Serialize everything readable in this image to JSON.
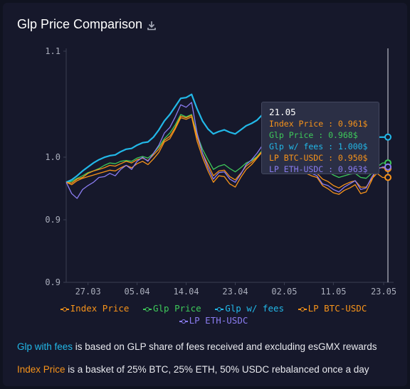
{
  "title": "Glp Price Comparison",
  "icons": {
    "download": "download-icon"
  },
  "colors": {
    "background": "#16182b",
    "index_price": "#f7931a",
    "glp_price": "#3ec95a",
    "glp_with_fees": "#22b8e8",
    "lp_btc_usdc": "#f7931a",
    "lp_eth_usdc": "#8a7cf0"
  },
  "chart_data": {
    "type": "line",
    "title": "Glp Price Comparison",
    "xlabel": "",
    "ylabel": "",
    "x": [
      "23.03",
      "24.03",
      "25.03",
      "26.03",
      "27.03",
      "28.03",
      "29.03",
      "30.03",
      "31.03",
      "01.04",
      "02.04",
      "03.04",
      "04.04",
      "05.04",
      "06.04",
      "07.04",
      "08.04",
      "09.04",
      "10.04",
      "11.04",
      "12.04",
      "13.04",
      "14.04",
      "15.04",
      "16.04",
      "17.04",
      "18.04",
      "19.04",
      "20.04",
      "21.04",
      "22.04",
      "23.04",
      "24.04",
      "25.04",
      "26.04",
      "27.04",
      "28.04",
      "29.04",
      "30.04",
      "01.05",
      "02.05",
      "03.05",
      "04.05",
      "05.05",
      "06.05",
      "07.05",
      "08.05",
      "09.05",
      "10.05",
      "11.05",
      "12.05",
      "13.05",
      "14.05",
      "15.05",
      "16.05",
      "17.05",
      "18.05",
      "19.05",
      "20.05",
      "21.05"
    ],
    "x_ticks": [
      "27.03",
      "05.04",
      "14.04",
      "23.04",
      "02.05",
      "11.05",
      "23.05"
    ],
    "y_ticks": [
      "1.1",
      "1.0",
      "0.9",
      "0.9"
    ],
    "ylim": [
      0.82,
      1.11
    ],
    "series": [
      {
        "name": "Index Price",
        "values": [
          0.944,
          0.941,
          0.946,
          0.949,
          0.951,
          0.953,
          0.955,
          0.957,
          0.959,
          0.958,
          0.962,
          0.965,
          0.962,
          0.967,
          0.97,
          0.966,
          0.973,
          0.981,
          0.994,
          0.998,
          1.01,
          1.024,
          1.022,
          1.025,
          0.995,
          0.975,
          0.958,
          0.944,
          0.952,
          0.951,
          0.942,
          0.938,
          0.95,
          0.96,
          0.966,
          0.974,
          0.982,
          0.975,
          0.971,
          0.968,
          0.976,
          0.974,
          0.976,
          0.962,
          0.955,
          0.952,
          0.95,
          0.94,
          0.936,
          0.931,
          0.929,
          0.934,
          0.937,
          0.941,
          0.93,
          0.932,
          0.946,
          0.962,
          0.962,
          0.961
        ]
      },
      {
        "name": "Glp Price",
        "values": [
          0.944,
          0.945,
          0.949,
          0.952,
          0.956,
          0.958,
          0.961,
          0.965,
          0.968,
          0.967,
          0.97,
          0.971,
          0.97,
          0.974,
          0.976,
          0.974,
          0.98,
          0.988,
          0.998,
          1.005,
          1.015,
          1.028,
          1.025,
          1.028,
          1.003,
          0.985,
          0.972,
          0.96,
          0.964,
          0.966,
          0.961,
          0.957,
          0.962,
          0.968,
          0.971,
          0.976,
          0.984,
          0.98,
          0.977,
          0.975,
          0.979,
          0.978,
          0.979,
          0.971,
          0.966,
          0.963,
          0.962,
          0.958,
          0.957,
          0.953,
          0.95,
          0.952,
          0.954,
          0.955,
          0.95,
          0.949,
          0.955,
          0.963,
          0.968,
          0.968
        ]
      },
      {
        "name": "Glp w/ fees",
        "values": [
          0.944,
          0.947,
          0.952,
          0.958,
          0.963,
          0.968,
          0.972,
          0.975,
          0.977,
          0.978,
          0.982,
          0.985,
          0.986,
          0.99,
          0.993,
          0.994,
          1.0,
          1.009,
          1.02,
          1.028,
          1.038,
          1.048,
          1.049,
          1.053,
          1.035,
          1.02,
          1.01,
          1.004,
          1.007,
          1.009,
          1.006,
          1.004,
          1.009,
          1.014,
          1.017,
          1.021,
          1.028,
          1.027,
          1.025,
          1.023,
          1.027,
          1.028,
          1.03,
          1.025,
          1.021,
          1.019,
          1.018,
          1.015,
          1.014,
          1.011,
          1.009,
          1.01,
          1.012,
          1.013,
          1.009,
          1.008,
          1.01,
          1.0,
          1.0,
          1.0
        ]
      },
      {
        "name": "LP BTC-USDC",
        "values": [
          0.944,
          0.943,
          0.948,
          0.95,
          0.955,
          0.958,
          0.96,
          0.962,
          0.965,
          0.964,
          0.967,
          0.97,
          0.968,
          0.972,
          0.974,
          0.971,
          0.978,
          0.985,
          0.996,
          1.001,
          1.012,
          1.026,
          1.024,
          1.027,
          1.0,
          0.98,
          0.966,
          0.952,
          0.958,
          0.959,
          0.951,
          0.947,
          0.955,
          0.964,
          0.969,
          0.975,
          0.983,
          0.978,
          0.974,
          0.972,
          0.978,
          0.976,
          0.978,
          0.966,
          0.96,
          0.957,
          0.955,
          0.948,
          0.945,
          0.94,
          0.937,
          0.941,
          0.944,
          0.946,
          0.938,
          0.938,
          0.948,
          0.955,
          0.95,
          0.95
        ]
      },
      {
        "name": "LP ETH-USDC",
        "values": [
          0.944,
          0.93,
          0.924,
          0.935,
          0.94,
          0.944,
          0.95,
          0.951,
          0.955,
          0.952,
          0.96,
          0.965,
          0.96,
          0.97,
          0.975,
          0.97,
          0.98,
          0.99,
          1.005,
          1.012,
          1.025,
          1.04,
          1.037,
          1.043,
          1.005,
          0.98,
          0.962,
          0.948,
          0.956,
          0.957,
          0.948,
          0.944,
          0.954,
          0.966,
          0.972,
          0.98,
          0.99,
          0.98,
          0.975,
          0.972,
          0.982,
          0.978,
          0.981,
          0.966,
          0.958,
          0.955,
          0.952,
          0.942,
          0.94,
          0.935,
          0.932,
          0.938,
          0.942,
          0.946,
          0.935,
          0.937,
          0.95,
          0.96,
          0.963,
          0.963
        ]
      }
    ],
    "grid": false,
    "legend_position": "bottom"
  },
  "legend": {
    "index_price": "Index Price",
    "glp_price": "Glp Price",
    "glp_with_fees": "Glp w/ fees",
    "lp_btc_usdc": "LP BTC-USDC",
    "lp_eth_usdc": "LP ETH-USDC"
  },
  "tooltip": {
    "date": "21.05",
    "index_price": "Index Price : 0.961$",
    "glp_price": "Glp Price : 0.968$",
    "glp_with_fees": "Glp w/ fees : 1.000$",
    "lp_btc_usdc": "LP BTC-USDC : 0.950$",
    "lp_eth_usdc": "LP ETH-USDC : 0.963$"
  },
  "footnotes": {
    "line1_highlight": "Glp with fees",
    "line1_text": " is based on GLP share of fees received and excluding esGMX rewards",
    "line2_highlight": "Index Price",
    "line2_text": " is a basket of 25% BTC, 25% ETH, 50% USDC rebalanced once a day"
  }
}
